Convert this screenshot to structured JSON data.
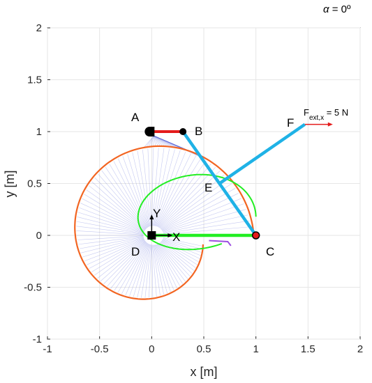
{
  "header": {
    "alpha_symbol": "α",
    "alpha_rest": " = 0º"
  },
  "axes": {
    "x_label": "x [m]",
    "y_label": "y [m]",
    "x_ticks": [
      "-1",
      "-0.5",
      "0",
      "0.5",
      "1",
      "1.5",
      "2"
    ],
    "y_ticks": [
      "2",
      "1.5",
      "1",
      "0.5",
      "0",
      "-0.5",
      "-1"
    ]
  },
  "labels": {
    "A": "A",
    "B": "B",
    "C": "C",
    "D": "D",
    "E": "E",
    "F": "F",
    "X": "X",
    "Y": "Y"
  },
  "force": {
    "F": "F",
    "sub": "ext,x",
    "value": " = 5 N"
  },
  "chart_data": {
    "type": "diagram",
    "xlim": [
      -1,
      2
    ],
    "ylim": [
      -1,
      2
    ],
    "grid": true,
    "points": {
      "A": [
        0,
        1
      ],
      "B": [
        0.3,
        1
      ],
      "C": [
        1,
        0
      ],
      "D": [
        0,
        0
      ],
      "E": [
        0.65,
        0.5
      ],
      "F": [
        1.47,
        1.07
      ]
    },
    "colors": {
      "orange": "#f26522",
      "green": "#22ee22",
      "cyan": "#1fb2e6",
      "red": "#e41b1b",
      "blue_fan": "#5a64d6",
      "purple": "#9c4fe0"
    }
  }
}
